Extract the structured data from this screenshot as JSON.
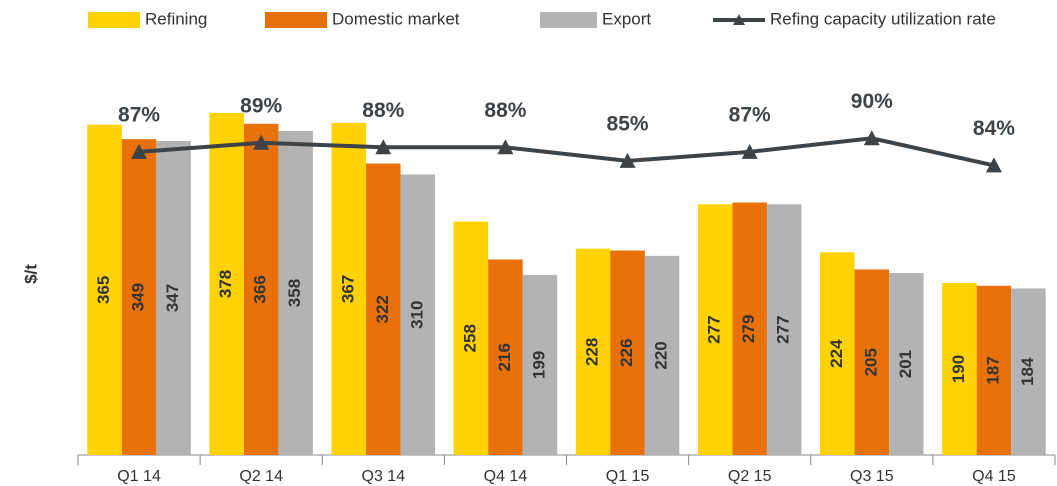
{
  "chart_data": {
    "type": "bar",
    "y_label": "$/t",
    "categories": [
      "Q1 14",
      "Q2 14",
      "Q3 14",
      "Q4 14",
      "Q1 15",
      "Q2 15",
      "Q3 15",
      "Q4 15"
    ],
    "ylim": [
      0,
      400
    ],
    "y2lim": [
      20,
      100
    ],
    "series": [
      {
        "name": "Refining",
        "color": "#FFD200",
        "values": [
          365,
          378,
          367,
          258,
          228,
          277,
          224,
          190
        ]
      },
      {
        "name": "Domestic market",
        "color": "#E8710A",
        "values": [
          349,
          366,
          322,
          216,
          226,
          279,
          205,
          187
        ]
      },
      {
        "name": "Export",
        "color": "#B3B3B3",
        "values": [
          347,
          358,
          310,
          199,
          220,
          277,
          201,
          184
        ]
      },
      {
        "name": "Refing capacity utilization rate",
        "type": "line",
        "axis": "y2",
        "color": "#3D4347",
        "values": [
          87,
          89,
          88,
          88,
          85,
          87,
          90,
          84
        ],
        "value_labels": [
          "87%",
          "89%",
          "88%",
          "88%",
          "85%",
          "87%",
          "90%",
          "84%"
        ]
      }
    ]
  }
}
